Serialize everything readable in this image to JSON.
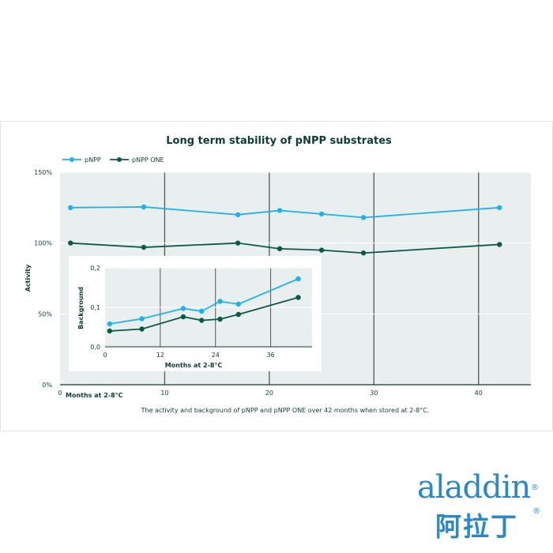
{
  "chart_data": [
    {
      "type": "line",
      "title": "Long term stability of pNPP substrates",
      "caption": "The activity and background of pNPP and pNPP ONE over 42 months when stored at 2-8°C.",
      "xlabel": "Months at 2-8°C",
      "ylabel": "Activity",
      "xlim": [
        0,
        45
      ],
      "ylim": [
        0,
        150
      ],
      "x_ticks": [
        "0",
        "10",
        "20",
        "30",
        "40"
      ],
      "y_ticks": [
        "0%",
        "50%",
        "100%",
        "150%"
      ],
      "grid": "vertical lines at x = 10, 20, 30, 40",
      "legend": "top-left",
      "series": [
        {
          "name": "pNPP",
          "color": "#1fb2ea",
          "x": [
            1,
            8,
            17,
            21,
            25,
            29,
            42
          ],
          "y": [
            125,
            125.5,
            120,
            123,
            120.5,
            118,
            125
          ]
        },
        {
          "name": "pNPP ONE",
          "color": "#0b5a46",
          "x": [
            1,
            8,
            17,
            21,
            25,
            29,
            42
          ],
          "y": [
            100,
            97,
            100,
            96,
            95,
            93,
            99
          ]
        }
      ]
    },
    {
      "type": "line",
      "xlabel": "Months at 2-8°C",
      "ylabel": "Background",
      "xlim": [
        0,
        45
      ],
      "ylim": [
        0,
        0.2
      ],
      "x_ticks": [
        "0",
        "12",
        "24",
        "36"
      ],
      "y_ticks": [
        "0,0",
        "0,1",
        "0,2"
      ],
      "grid": "vertical lines at x = 12, 24, 36",
      "series": [
        {
          "color": "#1fb2ea",
          "x": [
            1,
            8,
            17,
            21,
            25,
            29,
            42
          ],
          "y": [
            0.058,
            0.071,
            0.097,
            0.09,
            0.115,
            0.108,
            0.172
          ]
        },
        {
          "color": "#0b5a46",
          "x": [
            1,
            8,
            17,
            21,
            25,
            29,
            42
          ],
          "y": [
            0.04,
            0.045,
            0.076,
            0.067,
            0.07,
            0.082,
            0.125
          ]
        }
      ]
    }
  ],
  "brand": {
    "name_latin": "aladdin",
    "name_cn": "阿拉丁",
    "registered_mark": "®",
    "color": "#2a88c9"
  },
  "colors": {
    "plot_bg": "#e8efee",
    "grid": "#555555",
    "text_dark": "#0b3d33"
  }
}
